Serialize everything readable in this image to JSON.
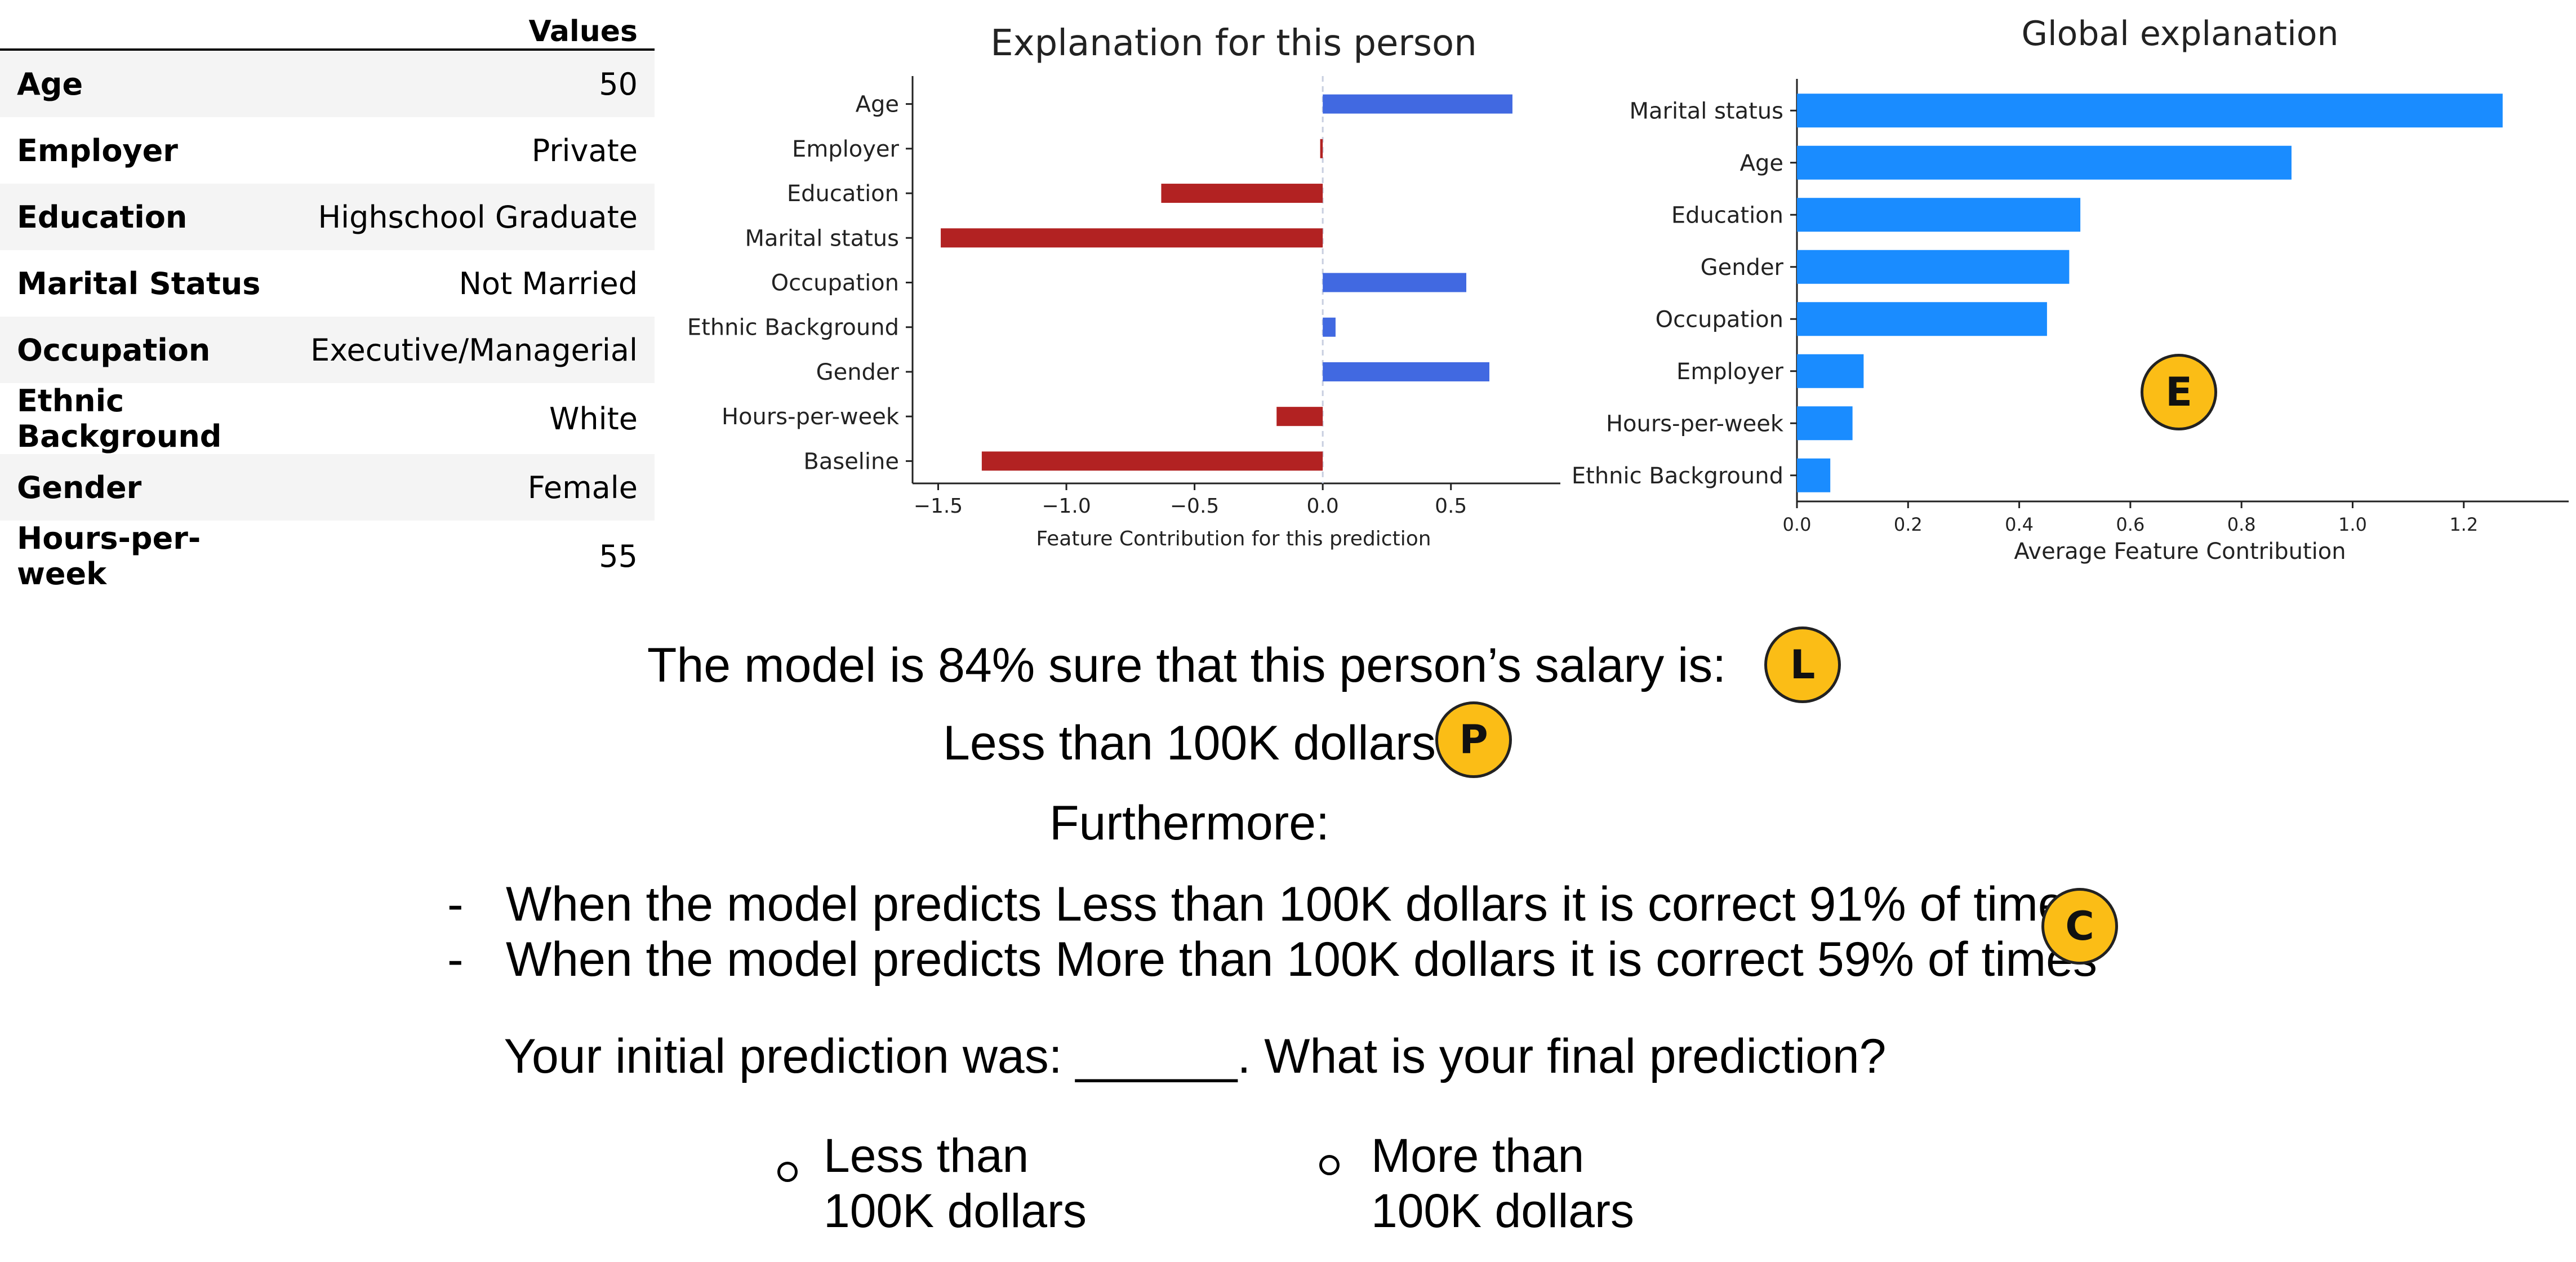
{
  "table": {
    "header": "Values",
    "rows": [
      {
        "name": "Age",
        "value": "50"
      },
      {
        "name": "Employer",
        "value": "Private"
      },
      {
        "name": "Education",
        "value": "Highschool Graduate"
      },
      {
        "name": "Marital Status",
        "value": "Not Married"
      },
      {
        "name": "Occupation",
        "value": "Executive/Managerial"
      },
      {
        "name": "Ethnic Background",
        "value": "White"
      },
      {
        "name": "Gender",
        "value": "Female"
      },
      {
        "name": "Hours-per-week",
        "value": "55"
      }
    ]
  },
  "chart_data": [
    {
      "type": "bar",
      "orientation": "horizontal",
      "title": "Explanation for this person",
      "xlabel": "Feature Contribution for this prediction",
      "ylabel": "",
      "categories": [
        "Age",
        "Employer",
        "Education",
        "Marital status",
        "Occupation",
        "Ethnic Background",
        "Gender",
        "Hours-per-week",
        "Baseline"
      ],
      "values": [
        0.74,
        -0.01,
        -0.63,
        -1.49,
        0.56,
        0.05,
        0.65,
        -0.18,
        -1.33
      ],
      "positive_color": "#4169e1",
      "negative_color": "#b22222",
      "xlim": [
        -1.6,
        0.85
      ],
      "xticks": [
        -1.5,
        -1.0,
        -0.5,
        0.0,
        0.5
      ],
      "xtick_labels": [
        "−1.5",
        "−1.0",
        "−0.5",
        "0.0",
        "0.5"
      ],
      "zero_line": "dashed",
      "grid": false
    },
    {
      "type": "bar",
      "orientation": "horizontal",
      "title": "Global explanation",
      "xlabel": "Average Feature Contribution",
      "ylabel": "",
      "categories": [
        "Marital status",
        "Age",
        "Education",
        "Gender",
        "Occupation",
        "Employer",
        "Hours-per-week",
        "Ethnic Background"
      ],
      "values": [
        1.27,
        0.89,
        0.51,
        0.49,
        0.45,
        0.12,
        0.1,
        0.06
      ],
      "color": "#1a8cff",
      "xlim": [
        0,
        1.33
      ],
      "xticks": [
        0.0,
        0.2,
        0.4,
        0.6,
        0.8,
        1.0,
        1.2
      ],
      "xtick_labels": [
        "0.0",
        "0.2",
        "0.4",
        "0.6",
        "0.8",
        "1.0",
        "1.2"
      ],
      "grid": false
    }
  ],
  "badges": {
    "e": "E",
    "l": "L",
    "p": "P",
    "c": "C"
  },
  "badge_color": "#fbbd16",
  "text": {
    "confidence": "The model is 84% sure that this person’s salary is:",
    "prediction": "Less than 100K dollars",
    "furthermore": "Furthermore:",
    "dash": "-",
    "bullet1": "When the model predicts Less than 100K dollars it is correct 91% of times",
    "bullet2": "When the model predicts More than 100K dollars it is correct 59% of times",
    "question": "Your initial prediction was: ______. What is your final prediction?"
  },
  "options": [
    {
      "line1": "Less than",
      "line2": "100K dollars"
    },
    {
      "line1": "More than",
      "line2": "100K dollars"
    }
  ]
}
